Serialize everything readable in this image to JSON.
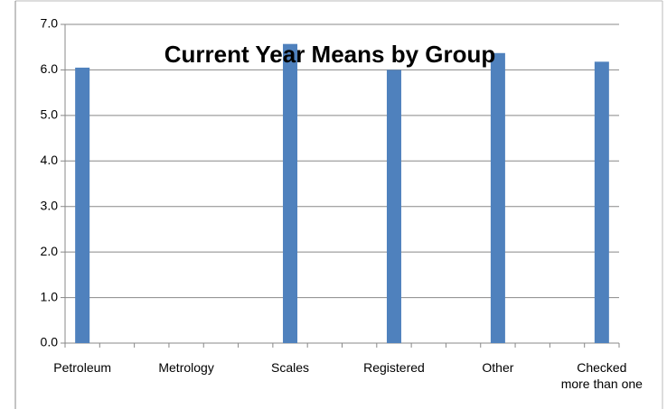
{
  "chart_data": {
    "type": "bar",
    "title": "Current Year Means by Group",
    "categories": [
      "Petroleum",
      null,
      null,
      "Metrology",
      null,
      null,
      "Scales",
      null,
      null,
      "Registered",
      null,
      null,
      "Other",
      null,
      null,
      "Checked\nmore than one"
    ],
    "values": [
      6.05,
      null,
      null,
      null,
      null,
      null,
      6.57,
      null,
      null,
      6.0,
      null,
      null,
      6.37,
      null,
      null,
      6.18
    ],
    "color": "#4f81bd",
    "ylim": [
      0,
      7
    ],
    "yticks": [
      {
        "value": 0,
        "label": "0.0"
      },
      {
        "value": 1,
        "label": "1.0"
      },
      {
        "value": 2,
        "label": "2.0"
      },
      {
        "value": 3,
        "label": "3.0"
      },
      {
        "value": 4,
        "label": "4.0"
      },
      {
        "value": 5,
        "label": "5.0"
      },
      {
        "value": 6,
        "label": "6.0"
      },
      {
        "value": 7,
        "label": "7.0"
      }
    ],
    "grid": true
  }
}
